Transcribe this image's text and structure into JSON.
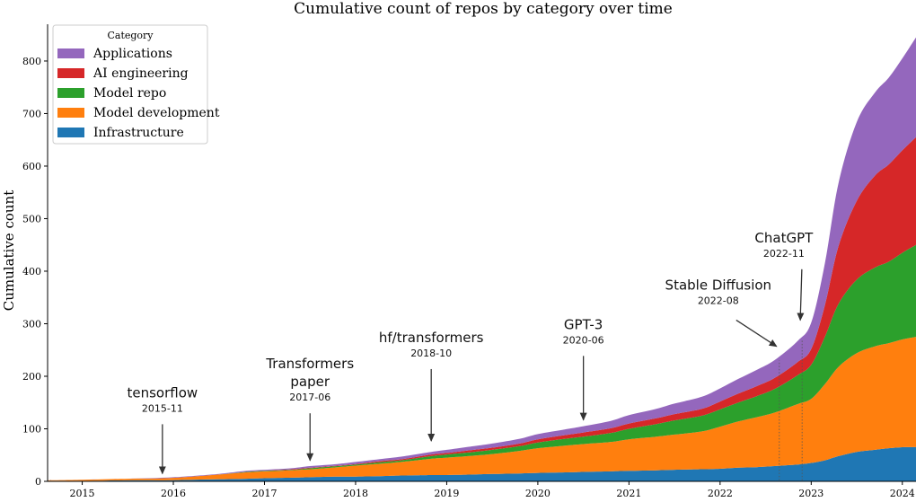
{
  "chart_data": {
    "type": "area",
    "stacked": true,
    "title": "Cumulative count of repos by category over time",
    "xlabel": "",
    "ylabel": "Cumulative count",
    "xlim": [
      2014.62,
      2024.15
    ],
    "ylim": [
      0,
      870
    ],
    "x_ticks": [
      {
        "value": 2015,
        "label": "2015"
      },
      {
        "value": 2016,
        "label": "2016"
      },
      {
        "value": 2017,
        "label": "2017"
      },
      {
        "value": 2018,
        "label": "2018"
      },
      {
        "value": 2019,
        "label": "2019"
      },
      {
        "value": 2020,
        "label": "2020"
      },
      {
        "value": 2021,
        "label": "2021"
      },
      {
        "value": 2022,
        "label": "2022"
      },
      {
        "value": 2023,
        "label": "2023"
      },
      {
        "value": 2024,
        "label": "2024"
      }
    ],
    "y_ticks": [
      0,
      100,
      200,
      300,
      400,
      500,
      600,
      700,
      800
    ],
    "legend": {
      "title": "Category",
      "position": "top-left"
    },
    "x": [
      2014.62,
      2015.0,
      2015.5,
      2015.9,
      2016.2,
      2016.5,
      2016.8,
      2017.0,
      2017.3,
      2017.5,
      2017.8,
      2018.0,
      2018.3,
      2018.5,
      2018.83,
      2019.0,
      2019.3,
      2019.5,
      2019.8,
      2020.0,
      2020.3,
      2020.5,
      2020.8,
      2021.0,
      2021.3,
      2021.5,
      2021.8,
      2022.0,
      2022.2,
      2022.4,
      2022.6,
      2022.85,
      2023.0,
      2023.15,
      2023.3,
      2023.5,
      2023.7,
      2023.85,
      2024.0,
      2024.15
    ],
    "series": [
      {
        "name": "Infrastructure",
        "color": "#1f77b4",
        "values": [
          1,
          1,
          2,
          2,
          3,
          4,
          5,
          6,
          7,
          8,
          9,
          9,
          10,
          11,
          12,
          12,
          13,
          14,
          15,
          16,
          17,
          18,
          19,
          20,
          21,
          22,
          23,
          24,
          26,
          27,
          29,
          32,
          35,
          40,
          48,
          56,
          60,
          63,
          65,
          65
        ]
      },
      {
        "name": "Model development",
        "color": "#ff7f0e",
        "values": [
          1,
          2,
          3,
          4,
          6,
          9,
          12,
          13,
          14,
          15,
          18,
          21,
          24,
          26,
          31,
          33,
          36,
          38,
          43,
          47,
          51,
          53,
          56,
          60,
          64,
          67,
          72,
          80,
          88,
          95,
          102,
          115,
          122,
          145,
          170,
          188,
          197,
          200,
          205,
          210
        ]
      },
      {
        "name": "Model repo",
        "color": "#2ca02c",
        "values": [
          0,
          0,
          0,
          0,
          0,
          0,
          1,
          1,
          1,
          2,
          2,
          2,
          3,
          3,
          5,
          6,
          7,
          8,
          9,
          11,
          13,
          14,
          17,
          20,
          24,
          27,
          30,
          33,
          36,
          40,
          45,
          55,
          65,
          90,
          120,
          140,
          150,
          155,
          165,
          175
        ]
      },
      {
        "name": "AI engineering",
        "color": "#d62728",
        "values": [
          0,
          0,
          0,
          0,
          0,
          0,
          0,
          0,
          1,
          1,
          1,
          1,
          2,
          2,
          3,
          3,
          4,
          4,
          5,
          6,
          7,
          8,
          9,
          10,
          11,
          12,
          13,
          15,
          17,
          19,
          21,
          25,
          30,
          60,
          110,
          150,
          175,
          185,
          195,
          205
        ]
      },
      {
        "name": "Applications",
        "color": "#9467bd",
        "values": [
          0,
          0,
          0,
          1,
          1,
          1,
          2,
          2,
          2,
          3,
          3,
          4,
          4,
          5,
          5,
          6,
          7,
          8,
          9,
          10,
          11,
          12,
          14,
          16,
          18,
          20,
          23,
          25,
          28,
          31,
          34,
          40,
          50,
          80,
          120,
          150,
          158,
          165,
          175,
          190
        ]
      }
    ],
    "annotations": [
      {
        "label": "tensorflow",
        "date": "2015-11",
        "x": 2015.88,
        "y": 8,
        "text_y": 160
      },
      {
        "label": "Transformers\npaper",
        "date": "2017-06",
        "x": 2017.5,
        "y": 33,
        "text_y": 215
      },
      {
        "label": "hf/transformers",
        "date": "2018-10",
        "x": 2018.83,
        "y": 70,
        "text_y": 265
      },
      {
        "label": "GPT-3",
        "date": "2020-06",
        "x": 2020.5,
        "y": 110,
        "text_y": 290
      },
      {
        "label": "Stable Diffusion",
        "date": "2022-08",
        "x": 2022.62,
        "y": 250,
        "text_y": 365,
        "text_x": 2021.98
      },
      {
        "label": "ChatGPT",
        "date": "2022-11",
        "x": 2022.88,
        "y": 300,
        "text_y": 455,
        "text_x": 2022.7
      }
    ],
    "vlines": [
      2022.65,
      2022.9
    ]
  }
}
